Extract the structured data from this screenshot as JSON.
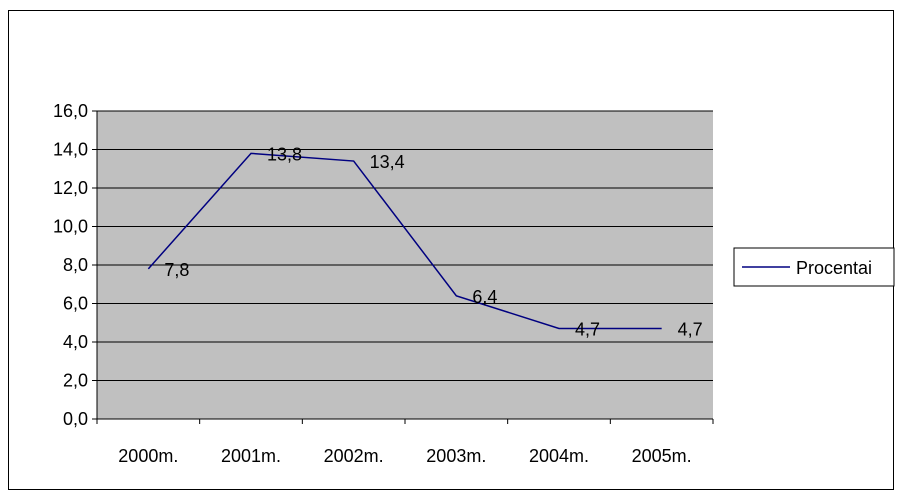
{
  "chart_data": {
    "type": "line",
    "categories": [
      "2000m.",
      "2001m.",
      "2002m.",
      "2003m.",
      "2004m.",
      "2005m."
    ],
    "series": [
      {
        "name": "Procentai",
        "values": [
          7.8,
          13.8,
          13.4,
          6.4,
          4.7,
          4.7
        ]
      }
    ],
    "data_labels": [
      "7,8",
      "13,8",
      "13,4",
      "6,4",
      "4,7",
      "4,7"
    ],
    "y_ticks": [
      "0,0",
      "2,0",
      "4,0",
      "6,0",
      "8,0",
      "10,0",
      "12,0",
      "14,0",
      "16,0"
    ],
    "ylim": [
      0,
      16
    ],
    "y_step": 2,
    "grid": true,
    "legend_position": "right",
    "colors": {
      "plot_background": "#c0c0c0",
      "gridline": "#000000",
      "series_line": "#000080",
      "text": "#000000"
    }
  }
}
